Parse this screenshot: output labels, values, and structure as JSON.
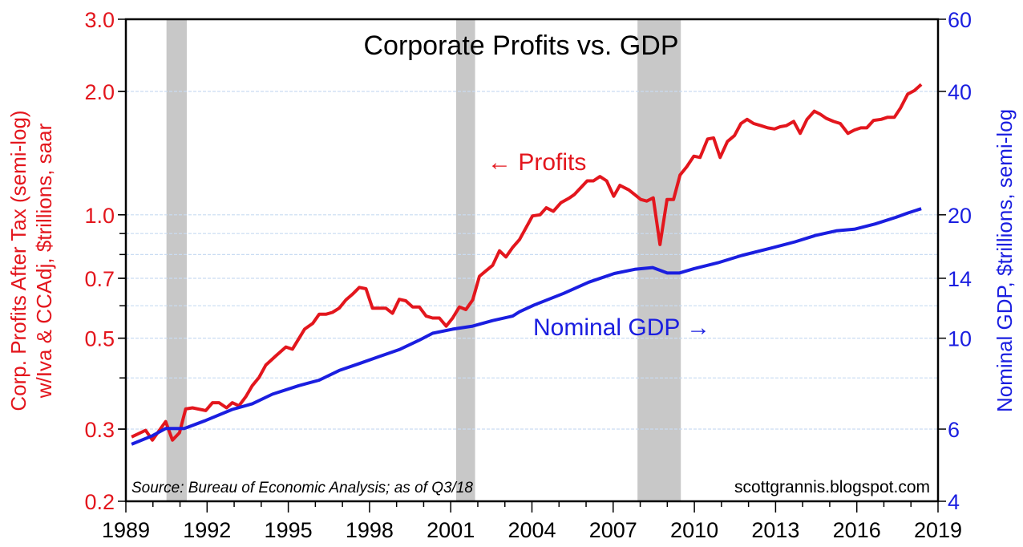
{
  "chart_data": {
    "type": "line",
    "title": "Corporate Profits vs. GDP",
    "ylabel_left": [
      "Corp. Profits After Tax (semi-log)",
      "w/Iva & CCAdj, $trillions, saar"
    ],
    "ylabel_right": "Nominal GDP, $trillions, semi-log",
    "source": "Source: Bureau of Economic Analysis; as of Q3/18",
    "watermark": "scottgrannis.blogspot.com",
    "y_scale": "log",
    "xlim": [
      1989,
      2019
    ],
    "ylim_left": [
      0.2,
      3.0
    ],
    "ylim_right": [
      4,
      60
    ],
    "x_ticks": [
      "1989",
      "1992",
      "1995",
      "1998",
      "2001",
      "2004",
      "2007",
      "2010",
      "2013",
      "2016",
      "2019"
    ],
    "y_ticks_left": [
      "3.0",
      "2.0",
      "1.0",
      "0.7",
      "0.5",
      "0.3",
      "0.2"
    ],
    "y_ticks_right": [
      "60",
      "40",
      "20",
      "14",
      "10",
      "6",
      "4"
    ],
    "gridlines_left": [
      2.0,
      1.0,
      0.9,
      0.8,
      0.7,
      0.6,
      0.5,
      0.4,
      0.3
    ],
    "grid": true,
    "recessions": [
      [
        1990.5,
        1991.25
      ],
      [
        2001.2,
        2001.9
      ],
      [
        2007.9,
        2009.5
      ]
    ],
    "colors": {
      "profits": "#e3161d",
      "gdp": "#1a1ee0",
      "recession": "#c8c8c8",
      "grid": "#c9dcf2"
    },
    "annotations": {
      "profits": "← Profits",
      "gdp": "Nominal GDP →"
    },
    "series": [
      {
        "name": "Profits",
        "axis": "left",
        "points": [
          [
            1989.21,
            0.287
          ],
          [
            1989.73,
            0.298
          ],
          [
            1989.98,
            0.282
          ],
          [
            1990.47,
            0.313
          ],
          [
            1990.72,
            0.282
          ],
          [
            1990.98,
            0.294
          ],
          [
            1991.21,
            0.336
          ],
          [
            1991.46,
            0.338
          ],
          [
            1991.95,
            0.333
          ],
          [
            1992.2,
            0.348
          ],
          [
            1992.44,
            0.348
          ],
          [
            1992.72,
            0.338
          ],
          [
            1992.93,
            0.348
          ],
          [
            1993.18,
            0.342
          ],
          [
            1993.43,
            0.36
          ],
          [
            1993.67,
            0.383
          ],
          [
            1993.92,
            0.401
          ],
          [
            1994.17,
            0.43
          ],
          [
            1994.56,
            0.454
          ],
          [
            1994.91,
            0.476
          ],
          [
            1995.15,
            0.47
          ],
          [
            1995.6,
            0.526
          ],
          [
            1995.9,
            0.543
          ],
          [
            1996.14,
            0.572
          ],
          [
            1996.39,
            0.572
          ],
          [
            1996.63,
            0.578
          ],
          [
            1996.88,
            0.592
          ],
          [
            1997.13,
            0.62
          ],
          [
            1997.37,
            0.64
          ],
          [
            1997.62,
            0.665
          ],
          [
            1997.87,
            0.66
          ],
          [
            1998.11,
            0.592
          ],
          [
            1998.6,
            0.592
          ],
          [
            1998.85,
            0.575
          ],
          [
            1999.1,
            0.622
          ],
          [
            1999.34,
            0.617
          ],
          [
            1999.59,
            0.596
          ],
          [
            1999.84,
            0.596
          ],
          [
            2000.09,
            0.566
          ],
          [
            2000.33,
            0.56
          ],
          [
            2000.58,
            0.56
          ],
          [
            2000.83,
            0.535
          ],
          [
            2001.07,
            0.56
          ],
          [
            2001.32,
            0.596
          ],
          [
            2001.56,
            0.587
          ],
          [
            2001.81,
            0.62
          ],
          [
            2002.06,
            0.708
          ],
          [
            2002.3,
            0.73
          ],
          [
            2002.55,
            0.753
          ],
          [
            2002.8,
            0.817
          ],
          [
            2003.04,
            0.789
          ],
          [
            2003.29,
            0.833
          ],
          [
            2003.54,
            0.87
          ],
          [
            2004.02,
            0.994
          ],
          [
            2004.3,
            1.0
          ],
          [
            2004.53,
            1.04
          ],
          [
            2004.79,
            1.02
          ],
          [
            2005.07,
            1.07
          ],
          [
            2005.39,
            1.1
          ],
          [
            2005.56,
            1.12
          ],
          [
            2006.04,
            1.21
          ],
          [
            2006.27,
            1.21
          ],
          [
            2006.51,
            1.24
          ],
          [
            2006.76,
            1.21
          ],
          [
            2007.02,
            1.11
          ],
          [
            2007.25,
            1.18
          ],
          [
            2007.58,
            1.15
          ],
          [
            2007.8,
            1.12
          ],
          [
            2008.02,
            1.09
          ],
          [
            2008.24,
            1.08
          ],
          [
            2008.48,
            1.1
          ],
          [
            2008.73,
            0.846
          ],
          [
            2008.99,
            1.09
          ],
          [
            2009.23,
            1.09
          ],
          [
            2009.47,
            1.25
          ],
          [
            2009.72,
            1.31
          ],
          [
            2009.98,
            1.39
          ],
          [
            2010.21,
            1.38
          ],
          [
            2010.49,
            1.53
          ],
          [
            2010.71,
            1.54
          ],
          [
            2010.95,
            1.38
          ],
          [
            2011.22,
            1.51
          ],
          [
            2011.48,
            1.56
          ],
          [
            2011.72,
            1.67
          ],
          [
            2011.95,
            1.71
          ],
          [
            2012.19,
            1.67
          ],
          [
            2012.46,
            1.65
          ],
          [
            2012.71,
            1.63
          ],
          [
            2012.96,
            1.62
          ],
          [
            2013.17,
            1.64
          ],
          [
            2013.39,
            1.65
          ],
          [
            2013.67,
            1.69
          ],
          [
            2013.91,
            1.58
          ],
          [
            2014.16,
            1.71
          ],
          [
            2014.43,
            1.79
          ],
          [
            2014.65,
            1.76
          ],
          [
            2014.87,
            1.72
          ],
          [
            2015.14,
            1.69
          ],
          [
            2015.39,
            1.67
          ],
          [
            2015.67,
            1.58
          ],
          [
            2015.91,
            1.61
          ],
          [
            2016.15,
            1.63
          ],
          [
            2016.37,
            1.63
          ],
          [
            2016.62,
            1.7
          ],
          [
            2016.9,
            1.71
          ],
          [
            2017.14,
            1.73
          ],
          [
            2017.39,
            1.73
          ],
          [
            2017.61,
            1.82
          ],
          [
            2017.88,
            1.97
          ],
          [
            2018.13,
            2.01
          ],
          [
            2018.38,
            2.08
          ]
        ]
      },
      {
        "name": "Nominal GDP",
        "axis": "right",
        "points": [
          [
            1989.21,
            5.51
          ],
          [
            1989.98,
            5.78
          ],
          [
            1990.47,
            6.02
          ],
          [
            1991.16,
            6.02
          ],
          [
            1991.95,
            6.3
          ],
          [
            1992.93,
            6.7
          ],
          [
            1993.67,
            6.92
          ],
          [
            1994.41,
            7.3
          ],
          [
            1995.39,
            7.66
          ],
          [
            1996.14,
            7.9
          ],
          [
            1996.88,
            8.34
          ],
          [
            1997.62,
            8.67
          ],
          [
            1998.36,
            9.02
          ],
          [
            1999.1,
            9.38
          ],
          [
            1999.84,
            9.89
          ],
          [
            2000.33,
            10.28
          ],
          [
            2001.07,
            10.52
          ],
          [
            2001.81,
            10.7
          ],
          [
            2002.55,
            11.04
          ],
          [
            2003.29,
            11.32
          ],
          [
            2003.54,
            11.6
          ],
          [
            2004.08,
            12.05
          ],
          [
            2005.17,
            12.86
          ],
          [
            2006.1,
            13.7
          ],
          [
            2007.04,
            14.38
          ],
          [
            2007.8,
            14.72
          ],
          [
            2008.46,
            14.87
          ],
          [
            2009.0,
            14.42
          ],
          [
            2009.44,
            14.42
          ],
          [
            2009.99,
            14.78
          ],
          [
            2010.87,
            15.28
          ],
          [
            2011.75,
            15.92
          ],
          [
            2012.85,
            16.6
          ],
          [
            2013.72,
            17.18
          ],
          [
            2014.49,
            17.82
          ],
          [
            2015.24,
            18.28
          ],
          [
            2015.91,
            18.44
          ],
          [
            2016.68,
            19.0
          ],
          [
            2017.45,
            19.72
          ],
          [
            2017.88,
            20.2
          ],
          [
            2018.38,
            20.7
          ]
        ]
      }
    ]
  }
}
